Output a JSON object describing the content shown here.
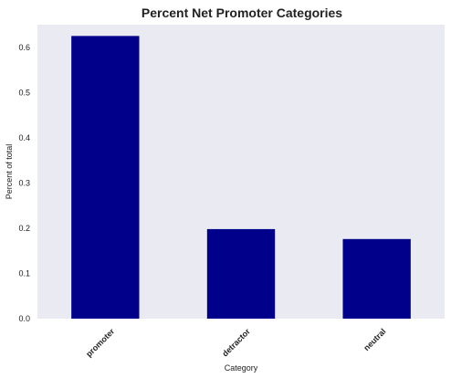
{
  "chart_data": {
    "type": "bar",
    "title": "Percent Net Promoter Categories",
    "xlabel": "Category",
    "ylabel": "Percent of total",
    "categories": [
      "promoter",
      "detractor",
      "neutral"
    ],
    "values": [
      0.625,
      0.198,
      0.176
    ],
    "ylim": [
      0,
      0.65
    ],
    "yticks": [
      "0.0",
      "0.1",
      "0.2",
      "0.3",
      "0.4",
      "0.5",
      "0.6"
    ],
    "grid": false,
    "legend": "none",
    "colors": {
      "bar": "#00008B",
      "plot_background": "#EAEAF2"
    }
  }
}
